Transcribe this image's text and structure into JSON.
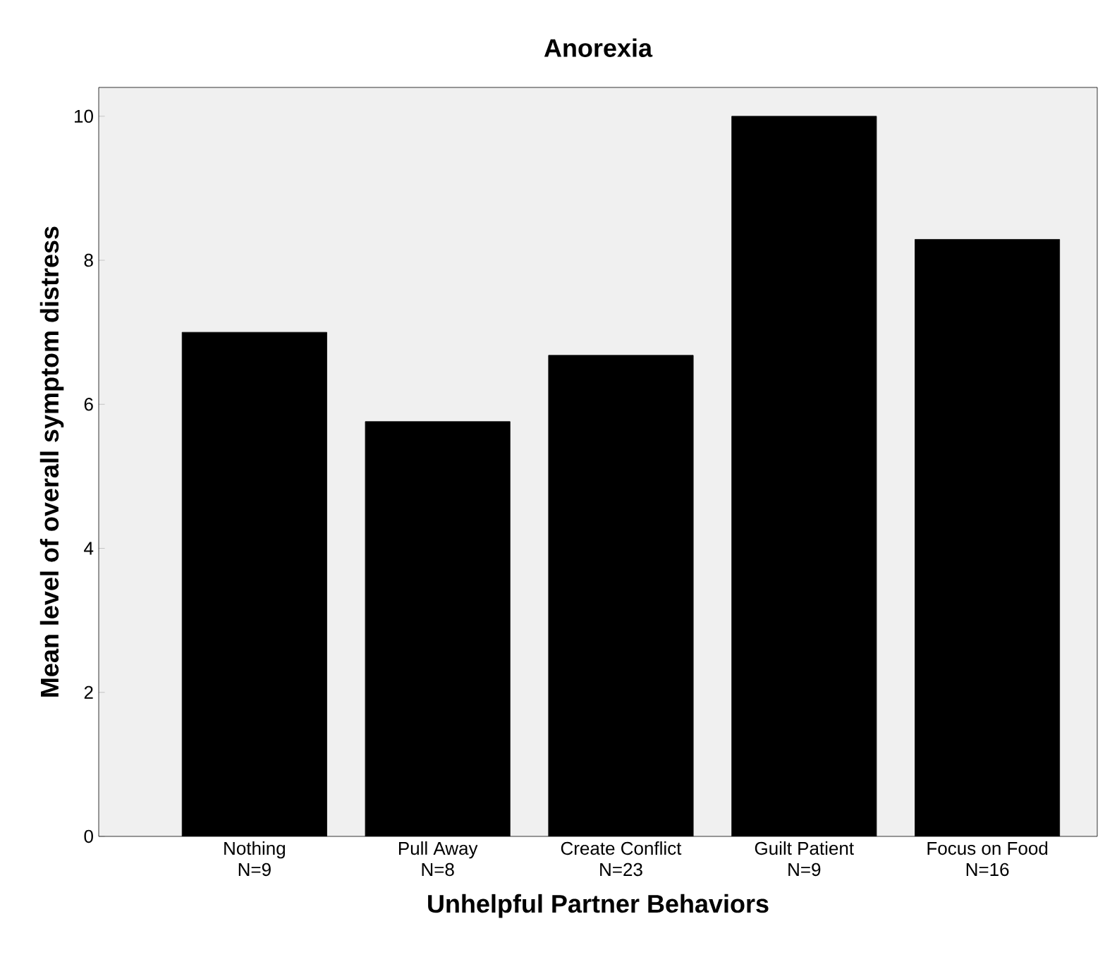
{
  "chart_data": {
    "type": "bar",
    "title": "Anorexia",
    "xlabel": "Unhelpful Partner Behaviors",
    "ylabel": "Mean level of overall symptom distress",
    "categories": [
      "Nothing\nN=9",
      "Pull Away\nN=8",
      "Create Conflict\nN=23",
      "Guilt Patient\nN=9",
      "Focus on Food\nN=16"
    ],
    "values": [
      7.0,
      5.76,
      6.68,
      10.0,
      8.29
    ],
    "color": "#000000",
    "ylim": [
      0,
      10.4
    ],
    "yticks": [
      0,
      2,
      4,
      6,
      8,
      10
    ]
  }
}
